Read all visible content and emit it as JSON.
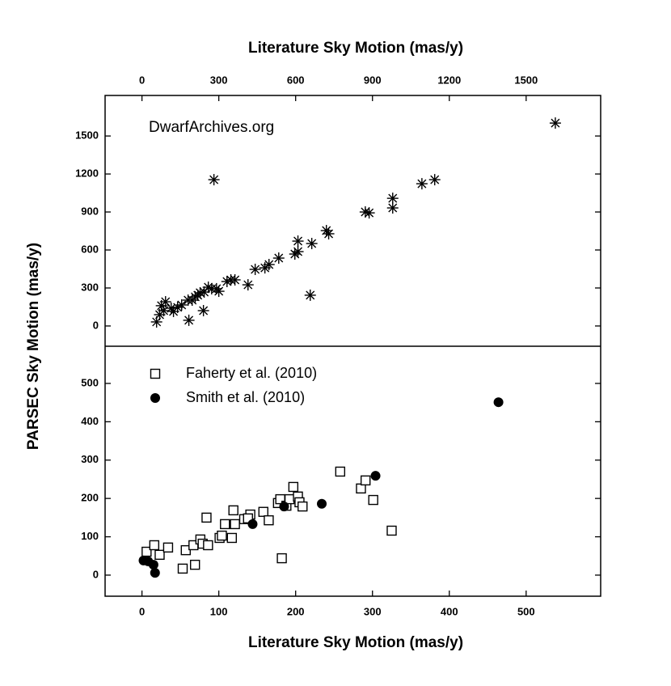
{
  "chart_data": [
    {
      "type": "scatter",
      "xlabel": "Literature Sky Motion (mas/y)",
      "annotation": "DwarfArchives.org",
      "xlim": [
        -144,
        1791
      ],
      "ylim": [
        -160,
        1820
      ],
      "xticks": [
        0,
        300,
        600,
        900,
        1200,
        1500
      ],
      "yticks": [
        0,
        300,
        600,
        900,
        1200,
        1500
      ],
      "series": [
        {
          "marker": "asterisk",
          "color": "#000000",
          "x": [
            1614,
            1143,
            1093,
            979,
            979,
            887,
            872,
            729,
            720,
            663,
            609,
            609,
            597,
            534,
            496,
            480,
            442,
            414,
            363,
            347,
            332,
            281,
            240,
            657,
            183,
            272,
            259,
            243,
            218,
            196,
            180,
            155,
            139,
            114,
            92,
            85,
            69,
            57,
            76,
            123,
            208,
            227,
            291,
            300
          ],
          "values": [
            1602,
            1155,
            1123,
            1008,
            932,
            893,
            900,
            728,
            753,
            651,
            670,
            587,
            568,
            536,
            485,
            459,
            447,
            325,
            364,
            364,
            351,
            1155,
            121,
            243,
            45,
            294,
            306,
            268,
            243,
            204,
            204,
            166,
            147,
            140,
            191,
            121,
            89,
            32,
            160,
            115,
            230,
            262,
            294,
            274
          ]
        }
      ]
    },
    {
      "type": "scatter",
      "xlabel": "Literature Sky Motion (mas/y)",
      "ylabel": "PARSEC Sky Motion (mas/y)",
      "xlim": [
        -48,
        597
      ],
      "ylim": [
        -55,
        597
      ],
      "xticks": [
        0,
        100,
        200,
        300,
        400,
        500
      ],
      "yticks": [
        0,
        100,
        200,
        300,
        400,
        500
      ],
      "legend": "upper left",
      "series": [
        {
          "name": "Faherty et al. (2010)",
          "marker": "square",
          "color": "#000000",
          "x": [
            6,
            16,
            23,
            34,
            53,
            57,
            67,
            69,
            76,
            79,
            86,
            84,
            101,
            104,
            108,
            117,
            119,
            121,
            133,
            141,
            138,
            158,
            165,
            177,
            180,
            182,
            188,
            192,
            197,
            203,
            205,
            209,
            258,
            285,
            291,
            301,
            325
          ],
          "values": [
            61,
            78,
            53,
            72,
            17,
            65,
            78,
            27,
            93,
            82,
            78,
            150,
            97,
            103,
            133,
            97,
            169,
            133,
            146,
            158,
            148,
            165,
            143,
            188,
            198,
            44,
            181,
            198,
            230,
            205,
            190,
            179,
            270,
            226,
            247,
            196,
            116
          ]
        },
        {
          "name": "Smith et al. (2010)",
          "marker": "circle",
          "color": "#000000",
          "x": [
            2,
            8,
            15,
            17,
            144,
            185,
            234,
            304,
            464
          ],
          "values": [
            38,
            36,
            27,
            6,
            133,
            179,
            186,
            259,
            451
          ]
        }
      ]
    }
  ]
}
